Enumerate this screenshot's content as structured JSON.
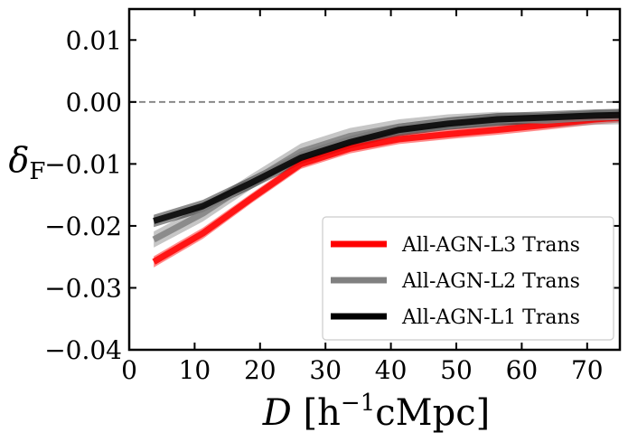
{
  "chart_data": {
    "type": "line",
    "xlabel": {
      "var": "D",
      "unit_pre": " [h",
      "unit_exp": "−1",
      "unit_post": "cMpc]"
    },
    "ylabel": {
      "var": "δ",
      "sub": "F"
    },
    "xlim": [
      0,
      75
    ],
    "ylim": [
      -0.04,
      0.015
    ],
    "x_ticks": [
      0,
      10,
      20,
      30,
      40,
      50,
      60,
      70
    ],
    "x_tick_labels": [
      "0",
      "10",
      "20",
      "30",
      "40",
      "50",
      "60",
      "70"
    ],
    "y_ticks": [
      -0.04,
      -0.03,
      -0.02,
      -0.01,
      0.0,
      0.01
    ],
    "y_tick_labels": [
      "−0.04",
      "−0.03",
      "−0.02",
      "−0.01",
      "0.00",
      "0.01"
    ],
    "reference_line": {
      "y": 0.0,
      "style": "dashed",
      "color": "#808080"
    },
    "legend_position": "lower-right",
    "series": [
      {
        "name": "All-AGN-L3 Trans",
        "color": "#ff0000",
        "x": [
          3.75,
          11.25,
          18.75,
          26.25,
          33.75,
          41.25,
          48.75,
          56.25,
          63.75,
          71.25,
          75
        ],
        "y": [
          -0.0258,
          -0.0212,
          -0.0155,
          -0.01,
          -0.0075,
          -0.006,
          -0.0052,
          -0.0045,
          -0.0037,
          -0.0028,
          -0.0025
        ],
        "band": [
          0.0009,
          0.0009,
          0.0008,
          0.0008,
          0.0008,
          0.0008,
          0.0008,
          0.0008,
          0.0008,
          0.0008,
          0.0008
        ]
      },
      {
        "name": "All-AGN-L2 Trans",
        "color": "#808080",
        "x": [
          3.75,
          11.25,
          18.75,
          26.25,
          33.75,
          41.25,
          48.75,
          56.25,
          63.75,
          71.25,
          75
        ],
        "y": [
          -0.0222,
          -0.018,
          -0.0128,
          -0.008,
          -0.0055,
          -0.004,
          -0.0032,
          -0.0028,
          -0.003,
          -0.0025,
          -0.0024
        ],
        "band": [
          0.0013,
          0.0013,
          0.0012,
          0.0013,
          0.0013,
          0.0012,
          0.0012,
          0.0012,
          0.0012,
          0.0012,
          0.0012
        ]
      },
      {
        "name": "All-AGN-L1 Trans",
        "color": "#000000",
        "x": [
          3.75,
          11.25,
          18.75,
          26.25,
          33.75,
          41.25,
          48.75,
          56.25,
          63.75,
          71.25,
          75
        ],
        "y": [
          -0.0192,
          -0.0168,
          -0.013,
          -0.009,
          -0.0065,
          -0.0045,
          -0.0035,
          -0.0028,
          -0.0025,
          -0.0022,
          -0.0021
        ],
        "band": [
          0.001,
          0.001,
          0.001,
          0.001,
          0.001,
          0.001,
          0.001,
          0.001,
          0.001,
          0.001,
          0.001
        ]
      }
    ]
  }
}
